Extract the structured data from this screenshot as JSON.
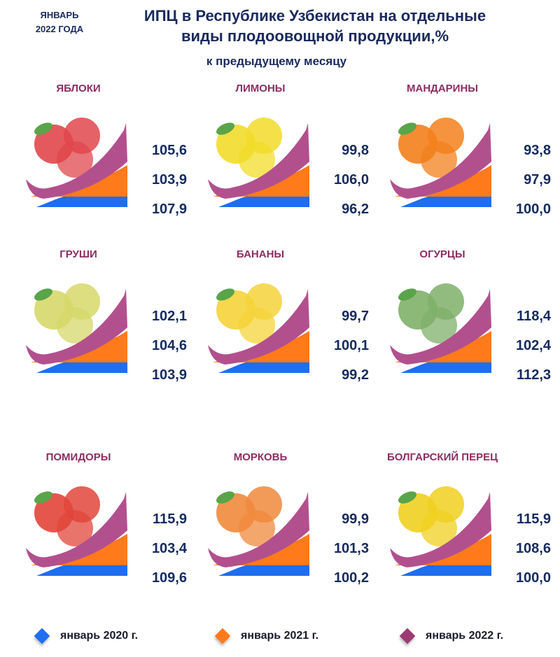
{
  "header": {
    "date_line1": "ЯНВАРЬ",
    "date_line2": "2022 ГОДА",
    "title_line1": "ИПЦ в Республике Узбекистан на отдельные",
    "title_line2": "виды плодоовощной продукции,%",
    "subtitle": "к предыдущему месяцу"
  },
  "colors": {
    "jan2020": "#1e6ef0",
    "jan2021": "#ff7a1a",
    "jan2022": "#b2508e",
    "label": "#8b2e62",
    "value": "#152a5e"
  },
  "products": [
    {
      "name": "ЯБЛОКИ",
      "icon": "apple-icon",
      "v2022": "105,6",
      "v2021": "103,9",
      "v2020": "107,9",
      "fruit": "#e0474c"
    },
    {
      "name": "ЛИМОНЫ",
      "icon": "lemon-icon",
      "v2022": "99,8",
      "v2021": "106,0",
      "v2020": "96,2",
      "fruit": "#f2dc2a"
    },
    {
      "name": "МАНДАРИНЫ",
      "icon": "tangerine-icon",
      "v2022": "93,8",
      "v2021": "97,9",
      "v2020": "100,0",
      "fruit": "#f3801c"
    },
    {
      "name": "ГРУШИ",
      "icon": "pear-icon",
      "v2022": "102,1",
      "v2021": "104,6",
      "v2020": "103,9",
      "fruit": "#d6d86a"
    },
    {
      "name": "БАНАНЫ",
      "icon": "banana-icon",
      "v2022": "99,7",
      "v2021": "100,1",
      "v2020": "99,2",
      "fruit": "#f5d33a"
    },
    {
      "name": "ОГУРЦЫ",
      "icon": "cucumber-icon",
      "v2022": "118,4",
      "v2021": "102,4",
      "v2020": "112,3",
      "fruit": "#7fb069"
    },
    {
      "name": "ПОМИДОРЫ",
      "icon": "tomato-icon",
      "v2022": "115,9",
      "v2021": "103,4",
      "v2020": "109,6",
      "fruit": "#e2453a"
    },
    {
      "name": "МОРКОВЬ",
      "icon": "carrot-icon",
      "v2022": "99,9",
      "v2021": "101,3",
      "v2020": "100,2",
      "fruit": "#f08a3c"
    },
    {
      "name": "БОЛГАРСКИЙ ПЕРЕЦ",
      "icon": "bell-pepper-icon",
      "v2022": "115,9",
      "v2021": "108,6",
      "v2020": "100,0",
      "fruit": "#f0d020"
    }
  ],
  "legend": [
    {
      "label": "январь 2020 г.",
      "color": "#1e6ef0"
    },
    {
      "label": "январь 2021 г.",
      "color": "#ff7a1a"
    },
    {
      "label": "январь 2022 г.",
      "color": "#9c3a74"
    }
  ],
  "chart_data": {
    "type": "table",
    "title": "ИПЦ в Республике Узбекистан на отдельные виды плодоовощной продукции,%",
    "subtitle": "к предыдущему месяцу",
    "period_note": "ЯНВАРЬ 2022 ГОДА",
    "categories": [
      "ЯБЛОКИ",
      "ЛИМОНЫ",
      "МАНДАРИНЫ",
      "ГРУШИ",
      "БАНАНЫ",
      "ОГУРЦЫ",
      "ПОМИДОРЫ",
      "МОРКОВЬ",
      "БОЛГАРСКИЙ ПЕРЕЦ"
    ],
    "series": [
      {
        "name": "январь 2022 г.",
        "values": [
          105.6,
          99.8,
          93.8,
          102.1,
          99.7,
          118.4,
          115.9,
          99.9,
          115.9
        ]
      },
      {
        "name": "январь 2021 г.",
        "values": [
          103.9,
          106.0,
          97.9,
          104.6,
          100.1,
          102.4,
          103.4,
          101.3,
          108.6
        ]
      },
      {
        "name": "январь 2020 г.",
        "values": [
          107.9,
          96.2,
          100.0,
          103.9,
          99.2,
          112.3,
          109.6,
          100.2,
          100.0
        ]
      }
    ],
    "legend_position": "bottom",
    "unit": "%"
  }
}
